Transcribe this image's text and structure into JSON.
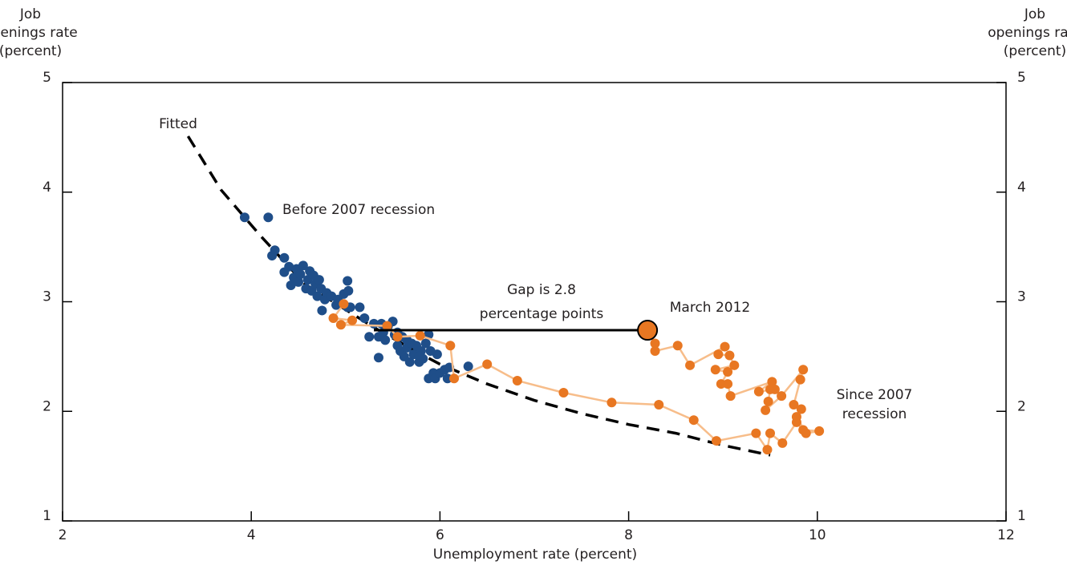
{
  "chart_data": {
    "type": "scatter",
    "x_label": "Unemployment rate (percent)",
    "y_label": [
      "Job",
      "openings rate",
      "(percent)"
    ],
    "y2_label": [
      "Job",
      "openings rate",
      "(percent)"
    ],
    "xlim": [
      2,
      12
    ],
    "ylim": [
      1,
      5
    ],
    "y2lim": [
      1,
      5
    ],
    "xticks": [
      2,
      4,
      6,
      8,
      10,
      12
    ],
    "yticks": [
      1,
      2,
      3,
      4,
      5
    ],
    "y2ticks": [
      1,
      2,
      3,
      4,
      5
    ],
    "series": [
      {
        "name": "Fitted",
        "type": "line",
        "color": "#000000",
        "x": [
          3.33,
          3.68,
          4.1,
          4.57,
          5.33,
          5.76,
          6.0,
          6.5,
          7.0,
          7.5,
          8.0,
          8.5,
          9.0,
          9.5
        ],
        "y": [
          4.51,
          4.02,
          3.6,
          3.16,
          2.75,
          2.54,
          2.43,
          2.25,
          2.1,
          1.98,
          1.88,
          1.8,
          1.69,
          1.6
        ]
      },
      {
        "name": "Before 2007 recession",
        "type": "scatter",
        "color": "#1f4e89",
        "x": [
          3.93,
          4.18,
          4.22,
          4.25,
          4.35,
          4.35,
          4.4,
          4.42,
          4.45,
          4.48,
          4.5,
          4.52,
          4.55,
          4.58,
          4.6,
          4.62,
          4.64,
          4.66,
          4.68,
          4.7,
          4.72,
          4.74,
          4.75,
          4.78,
          4.8,
          4.85,
          4.9,
          4.92,
          4.98,
          5.02,
          5.03,
          5.02,
          5.05,
          5.15,
          5.2,
          5.25,
          5.3,
          5.35,
          5.35,
          5.38,
          5.4,
          5.42,
          5.45,
          5.5,
          5.52,
          5.55,
          5.58,
          5.6,
          5.62,
          5.65,
          5.68,
          5.7,
          5.72,
          5.75,
          5.78,
          5.8,
          5.82,
          5.85,
          5.88,
          5.88,
          5.9,
          5.93,
          5.95,
          5.97,
          6.0,
          6.05,
          6.08,
          6.1,
          6.3,
          5.55,
          5.65,
          5.78
        ],
        "y": [
          3.77,
          3.77,
          3.42,
          3.47,
          3.4,
          3.27,
          3.32,
          3.15,
          3.22,
          3.3,
          3.18,
          3.25,
          3.33,
          3.12,
          3.2,
          3.28,
          3.1,
          3.24,
          3.16,
          3.05,
          3.2,
          3.12,
          2.92,
          3.02,
          3.08,
          3.05,
          2.97,
          3.02,
          3.07,
          3.19,
          3.1,
          2.95,
          2.95,
          2.95,
          2.85,
          2.68,
          2.8,
          2.68,
          2.49,
          2.8,
          2.72,
          2.65,
          2.78,
          2.82,
          2.7,
          2.6,
          2.55,
          2.68,
          2.5,
          2.58,
          2.45,
          2.62,
          2.52,
          2.6,
          2.45,
          2.55,
          2.48,
          2.62,
          2.7,
          2.3,
          2.55,
          2.35,
          2.3,
          2.52,
          2.35,
          2.38,
          2.3,
          2.4,
          2.41,
          2.72,
          2.65,
          2.5
        ]
      },
      {
        "name": [
          "Since 2007",
          "recession"
        ],
        "type": "connected",
        "color": "#e87722",
        "line_color": "#f7bd8a",
        "x": [
          4.98,
          4.87,
          5.07,
          4.95,
          5.44,
          5.55,
          5.79,
          6.11,
          6.15,
          6.5,
          6.82,
          7.31,
          7.82,
          8.32,
          8.69,
          8.93,
          9.35,
          9.47,
          9.5,
          9.63,
          9.78,
          9.85,
          10.02,
          9.88,
          9.78,
          9.83,
          9.75,
          9.82,
          9.85,
          9.62,
          9.45,
          9.48,
          9.5,
          9.55,
          9.38,
          9.52,
          9.08,
          9.05,
          8.98,
          9.05,
          8.92,
          9.12,
          9.07,
          8.95,
          9.02,
          8.65,
          8.52,
          8.28,
          8.28,
          8.2
        ],
        "y": [
          2.98,
          2.85,
          2.83,
          2.79,
          2.78,
          2.68,
          2.69,
          2.6,
          2.3,
          2.43,
          2.28,
          2.17,
          2.08,
          2.06,
          1.92,
          1.73,
          1.8,
          1.65,
          1.8,
          1.71,
          1.9,
          1.83,
          1.82,
          1.8,
          1.95,
          2.02,
          2.06,
          2.29,
          2.38,
          2.14,
          2.01,
          2.09,
          2.2,
          2.2,
          2.18,
          2.27,
          2.14,
          2.25,
          2.25,
          2.36,
          2.38,
          2.42,
          2.51,
          2.52,
          2.59,
          2.42,
          2.6,
          2.55,
          2.62,
          2.74
        ]
      }
    ],
    "highlight_label": "March 2012",
    "gap": {
      "text": [
        "Gap is 2.8",
        "percentage points"
      ],
      "x": [
        5.3,
        8.2
      ],
      "y": [
        2.74,
        2.74
      ]
    }
  }
}
